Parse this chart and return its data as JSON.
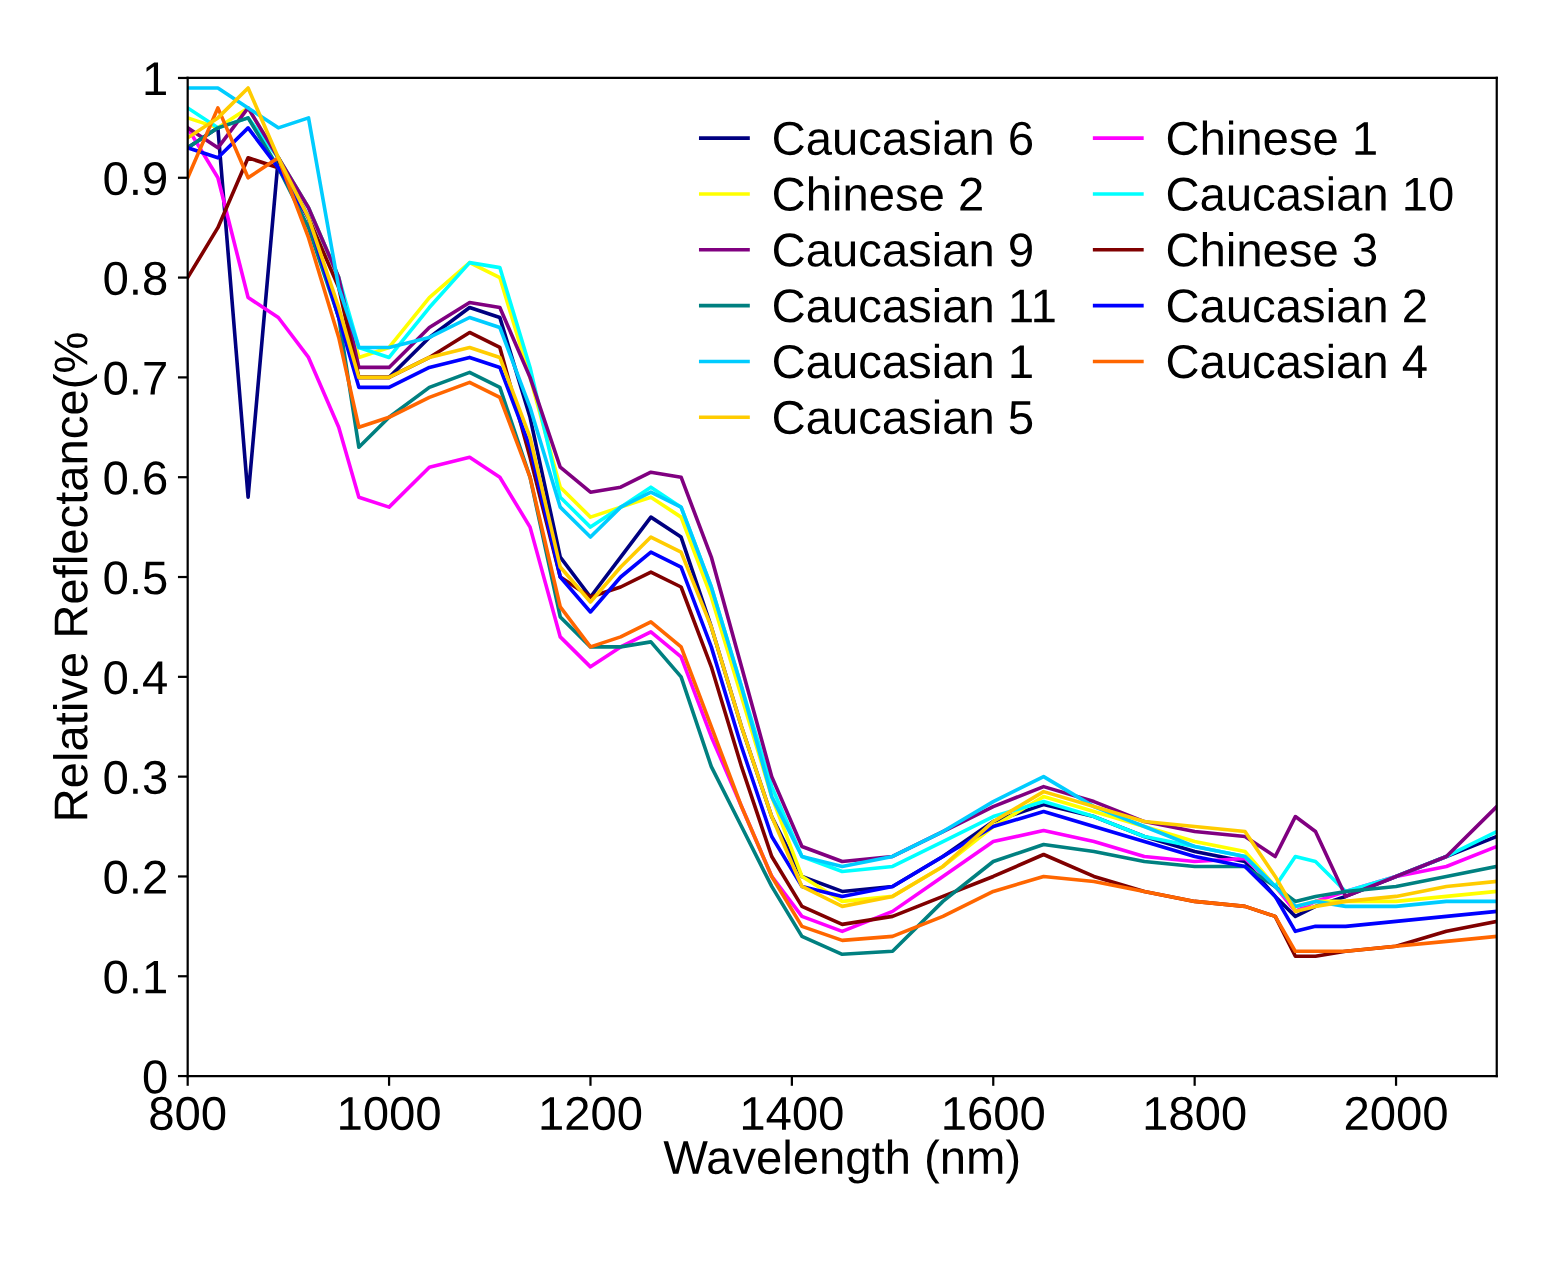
{
  "chart_data": {
    "type": "line",
    "xlabel": "Wavelength (nm)",
    "ylabel": "Relative Reflectance(%",
    "x": [
      800,
      830,
      860,
      890,
      920,
      950,
      970,
      1000,
      1040,
      1080,
      1110,
      1140,
      1170,
      1200,
      1230,
      1260,
      1290,
      1320,
      1350,
      1380,
      1410,
      1450,
      1500,
      1550,
      1600,
      1650,
      1700,
      1750,
      1800,
      1850,
      1880,
      1900,
      1920,
      1950,
      2000,
      2050,
      2100
    ],
    "xlim": [
      800,
      2100
    ],
    "xticks": [
      800,
      1000,
      1200,
      1400,
      1600,
      1800,
      2000
    ],
    "ylim": [
      0,
      1
    ],
    "yticks": [
      0,
      0.1,
      0.2,
      0.3,
      0.4,
      0.5,
      0.6,
      0.7,
      0.8,
      0.9,
      1
    ],
    "grid": false,
    "legend": "top right",
    "marker": "none",
    "line_style": "solid",
    "series": [
      {
        "name": "Caucasian 6",
        "color": "#000080",
        "values": [
          0.93,
          0.95,
          0.58,
          0.92,
          0.86,
          0.76,
          0.7,
          0.7,
          0.74,
          0.77,
          0.76,
          0.66,
          0.52,
          0.48,
          0.52,
          0.56,
          0.54,
          0.45,
          0.35,
          0.26,
          0.2,
          0.185,
          0.19,
          0.22,
          0.255,
          0.272,
          0.26,
          0.24,
          0.225,
          0.215,
          0.18,
          0.16,
          0.17,
          0.18,
          0.2,
          0.22,
          0.24
        ]
      },
      {
        "name": "Chinese 1",
        "color": "#ff00ff",
        "values": [
          0.95,
          0.9,
          0.78,
          0.76,
          0.72,
          0.65,
          0.58,
          0.57,
          0.61,
          0.62,
          0.6,
          0.55,
          0.44,
          0.41,
          0.43,
          0.445,
          0.42,
          0.34,
          0.27,
          0.2,
          0.16,
          0.145,
          0.165,
          0.2,
          0.235,
          0.246,
          0.235,
          0.22,
          0.215,
          0.218,
          0.19,
          0.165,
          0.175,
          0.185,
          0.2,
          0.21,
          0.23
        ]
      },
      {
        "name": "Chinese 2",
        "color": "#ffff00",
        "values": [
          0.96,
          0.95,
          0.97,
          0.92,
          0.87,
          0.8,
          0.72,
          0.73,
          0.78,
          0.815,
          0.8,
          0.7,
          0.59,
          0.56,
          0.57,
          0.58,
          0.56,
          0.48,
          0.38,
          0.28,
          0.2,
          0.175,
          0.18,
          0.21,
          0.25,
          0.28,
          0.265,
          0.25,
          0.235,
          0.225,
          0.19,
          0.17,
          0.175,
          0.175,
          0.175,
          0.18,
          0.185
        ]
      },
      {
        "name": "Caucasian 10",
        "color": "#00ffff",
        "values": [
          0.97,
          0.95,
          0.96,
          0.92,
          0.87,
          0.8,
          0.73,
          0.72,
          0.77,
          0.815,
          0.81,
          0.71,
          0.58,
          0.55,
          0.57,
          0.59,
          0.57,
          0.49,
          0.39,
          0.29,
          0.22,
          0.205,
          0.21,
          0.235,
          0.26,
          0.275,
          0.26,
          0.24,
          0.23,
          0.22,
          0.19,
          0.22,
          0.215,
          0.185,
          0.2,
          0.22,
          0.245
        ]
      },
      {
        "name": "Caucasian 9",
        "color": "#800080",
        "values": [
          0.95,
          0.93,
          0.97,
          0.92,
          0.87,
          0.8,
          0.71,
          0.71,
          0.75,
          0.775,
          0.77,
          0.7,
          0.61,
          0.585,
          0.59,
          0.605,
          0.6,
          0.52,
          0.41,
          0.3,
          0.23,
          0.215,
          0.22,
          0.245,
          0.27,
          0.29,
          0.275,
          0.255,
          0.245,
          0.24,
          0.22,
          0.26,
          0.245,
          0.18,
          0.2,
          0.22,
          0.27
        ]
      },
      {
        "name": "Chinese 3",
        "color": "#800000",
        "values": [
          0.8,
          0.85,
          0.92,
          0.91,
          0.86,
          0.79,
          0.7,
          0.7,
          0.72,
          0.745,
          0.73,
          0.62,
          0.5,
          0.48,
          0.49,
          0.505,
          0.49,
          0.41,
          0.31,
          0.22,
          0.17,
          0.152,
          0.16,
          0.18,
          0.2,
          0.222,
          0.2,
          0.185,
          0.175,
          0.17,
          0.16,
          0.12,
          0.12,
          0.125,
          0.13,
          0.145,
          0.155
        ]
      },
      {
        "name": "Caucasian 11",
        "color": "#008080",
        "values": [
          0.93,
          0.95,
          0.96,
          0.91,
          0.85,
          0.76,
          0.63,
          0.66,
          0.69,
          0.705,
          0.69,
          0.6,
          0.46,
          0.43,
          0.43,
          0.435,
          0.4,
          0.31,
          0.25,
          0.19,
          0.14,
          0.122,
          0.125,
          0.175,
          0.215,
          0.232,
          0.225,
          0.215,
          0.21,
          0.21,
          0.19,
          0.175,
          0.18,
          0.185,
          0.19,
          0.2,
          0.21
        ]
      },
      {
        "name": "Caucasian 2",
        "color": "#0000ff",
        "values": [
          0.93,
          0.92,
          0.95,
          0.91,
          0.86,
          0.76,
          0.69,
          0.69,
          0.71,
          0.72,
          0.71,
          0.63,
          0.5,
          0.465,
          0.5,
          0.525,
          0.51,
          0.43,
          0.33,
          0.24,
          0.19,
          0.18,
          0.19,
          0.22,
          0.25,
          0.265,
          0.25,
          0.235,
          0.22,
          0.21,
          0.18,
          0.145,
          0.15,
          0.15,
          0.155,
          0.16,
          0.165
        ]
      },
      {
        "name": "Caucasian 1",
        "color": "#00ccff",
        "values": [
          0.99,
          0.99,
          0.97,
          0.95,
          0.96,
          0.79,
          0.73,
          0.73,
          0.74,
          0.76,
          0.75,
          0.67,
          0.57,
          0.54,
          0.57,
          0.585,
          0.57,
          0.49,
          0.39,
          0.28,
          0.22,
          0.21,
          0.22,
          0.245,
          0.275,
          0.3,
          0.27,
          0.25,
          0.23,
          0.22,
          0.19,
          0.17,
          0.175,
          0.17,
          0.17,
          0.175,
          0.175
        ]
      },
      {
        "name": "Caucasian 4",
        "color": "#ff6600",
        "values": [
          0.9,
          0.97,
          0.9,
          0.92,
          0.84,
          0.74,
          0.65,
          0.66,
          0.68,
          0.695,
          0.68,
          0.6,
          0.47,
          0.43,
          0.44,
          0.455,
          0.43,
          0.35,
          0.27,
          0.2,
          0.15,
          0.136,
          0.14,
          0.16,
          0.185,
          0.2,
          0.195,
          0.185,
          0.175,
          0.17,
          0.16,
          0.125,
          0.125,
          0.125,
          0.13,
          0.135,
          0.14
        ]
      },
      {
        "name": "Caucasian 5",
        "color": "#ffcc00",
        "values": [
          0.94,
          0.96,
          0.99,
          0.92,
          0.86,
          0.77,
          0.7,
          0.7,
          0.72,
          0.73,
          0.72,
          0.64,
          0.51,
          0.475,
          0.51,
          0.54,
          0.525,
          0.45,
          0.35,
          0.26,
          0.19,
          0.17,
          0.18,
          0.21,
          0.255,
          0.285,
          0.27,
          0.255,
          0.25,
          0.245,
          0.2,
          0.165,
          0.17,
          0.175,
          0.18,
          0.19,
          0.195
        ]
      }
    ]
  }
}
